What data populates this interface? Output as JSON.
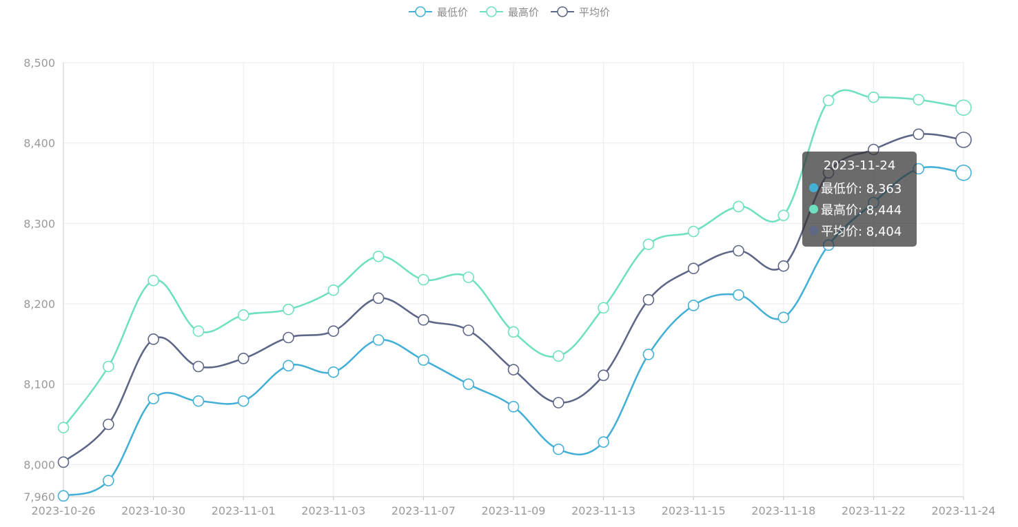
{
  "colors": {
    "low": "#45b0d6",
    "high": "#6fe0c0",
    "avg": "#5f6788",
    "grid": "#ebebeb",
    "axis_line": "#c8c8c8",
    "tick_text": "#9a9a9a"
  },
  "legend": [
    {
      "label": "最低价",
      "color": "#45b0d6"
    },
    {
      "label": "最高价",
      "color": "#6fe0c0"
    },
    {
      "label": "平均价",
      "color": "#5f6788"
    }
  ],
  "tooltip": {
    "date": "2023-11-24",
    "rows": [
      {
        "text": "最低价: 8,363",
        "color": "#45b0d6"
      },
      {
        "text": "最高价: 8,444",
        "color": "#6fe0c0"
      },
      {
        "text": "平均价: 8,404",
        "color": "#5f6788"
      }
    ]
  },
  "chart_data": {
    "type": "line",
    "smooth": true,
    "title": "",
    "xlabel": "",
    "ylabel": "",
    "x": [
      "2023-10-26",
      "2023-10-27",
      "2023-10-30",
      "2023-10-31",
      "2023-11-01",
      "2023-11-02",
      "2023-11-03",
      "2023-11-06",
      "2023-11-07",
      "2023-11-08",
      "2023-11-09",
      "2023-11-10",
      "2023-11-13",
      "2023-11-14",
      "2023-11-15",
      "2023-11-16",
      "2023-11-18",
      "2023-11-20",
      "2023-11-22",
      "2023-11-23",
      "2023-11-24"
    ],
    "x_tick_labels": [
      "2023-10-26",
      "2023-10-30",
      "2023-11-01",
      "2023-11-03",
      "2023-11-07",
      "2023-11-09",
      "2023-11-13",
      "2023-11-15",
      "2023-11-18",
      "2023-11-22",
      "2023-11-24"
    ],
    "ylim": [
      7960,
      8500
    ],
    "y_ticks": [
      7960,
      8000,
      8100,
      8200,
      8300,
      8400,
      8500
    ],
    "y_tick_labels": [
      "7,960",
      "8,000",
      "8,100",
      "8,200",
      "8,300",
      "8,400",
      "8,500"
    ],
    "grid": true,
    "legend_position": "top-center",
    "highlighted_x": "2023-11-24",
    "series": [
      {
        "name": "最低价",
        "key": "low",
        "values": [
          7961,
          7980,
          8082,
          8079,
          8079,
          8123,
          8115,
          8155,
          8130,
          8100,
          8072,
          8019,
          8028,
          8137,
          8198,
          8211,
          8183,
          8273,
          8326,
          8368,
          8363
        ]
      },
      {
        "name": "最高价",
        "key": "high",
        "values": [
          8046,
          8122,
          8229,
          8166,
          8186,
          8193,
          8217,
          8259,
          8230,
          8233,
          8165,
          8135,
          8195,
          8274,
          8290,
          8321,
          8310,
          8453,
          8457,
          8454,
          8444
        ]
      },
      {
        "name": "平均价",
        "key": "avg",
        "values": [
          8003,
          8050,
          8156,
          8122,
          8132,
          8158,
          8166,
          8207,
          8180,
          8167,
          8118,
          8077,
          8111,
          8205,
          8244,
          8266,
          8247,
          8363,
          8392,
          8411,
          8404
        ]
      }
    ]
  }
}
